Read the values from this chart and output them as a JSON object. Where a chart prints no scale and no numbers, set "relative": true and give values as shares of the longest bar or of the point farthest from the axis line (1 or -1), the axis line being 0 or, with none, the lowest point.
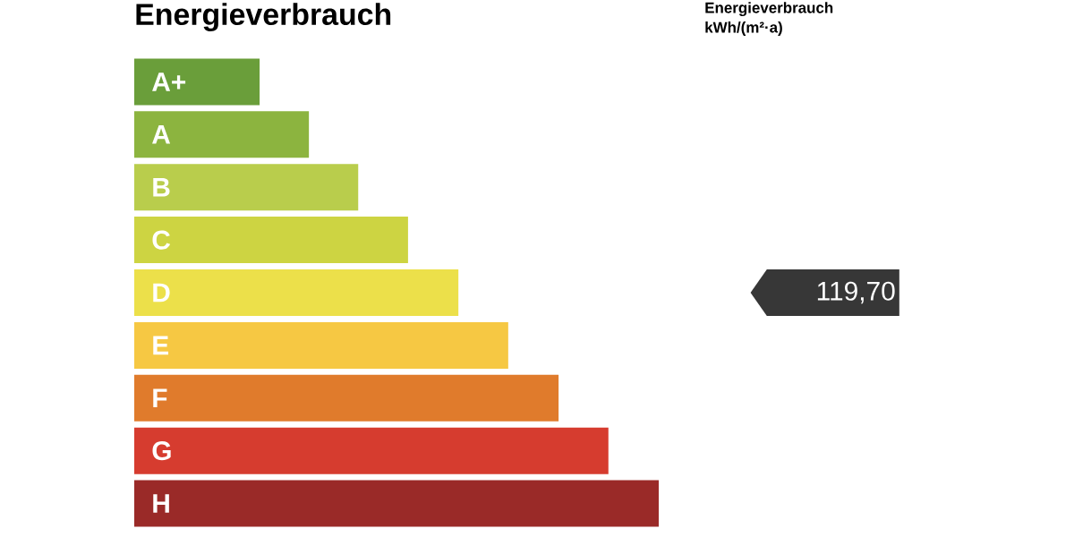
{
  "chart_data": {
    "type": "bar",
    "orientation": "horizontal",
    "relative": true,
    "title": "Energieverbrauch",
    "categories": [
      "A+",
      "A",
      "B",
      "C",
      "D",
      "E",
      "F",
      "G",
      "H"
    ],
    "values": [
      0.239,
      0.333,
      0.427,
      0.522,
      0.618,
      0.713,
      0.809,
      0.904,
      1
    ],
    "colors": [
      "#6a9e3a",
      "#8cb43f",
      "#b9cd4c",
      "#cdd442",
      "#ece04a",
      "#f6c843",
      "#e07b2c",
      "#d63c2f",
      "#9a2a28"
    ],
    "tick_labels": "y",
    "annotations": [
      "Energieverbrauch kWh/(m²·a)",
      "119,70"
    ]
  }
}
